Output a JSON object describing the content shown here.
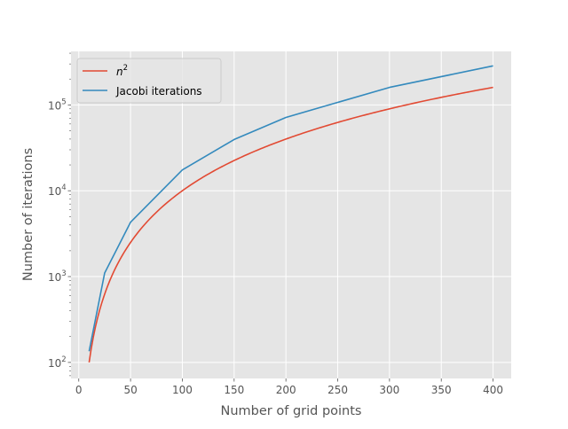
{
  "chart_data": {
    "type": "line",
    "title": "",
    "xlabel": "Number of grid points",
    "ylabel": "Number of iterations",
    "xlim": [
      -7.5,
      417.5
    ],
    "ylim": [
      65,
      420000
    ],
    "yscale": "log",
    "grid": true,
    "legend_placement": "upper left",
    "background": "#E5E5E5",
    "x_ticks": [
      0,
      50,
      100,
      150,
      200,
      250,
      300,
      350,
      400
    ],
    "x_tick_labels": [
      "0",
      "50",
      "100",
      "150",
      "200",
      "250",
      "300",
      "350",
      "400"
    ],
    "y_ticks": [
      100,
      1000,
      10000,
      100000
    ],
    "y_tick_labels": [
      {
        "base": "10",
        "exp": "2"
      },
      {
        "base": "10",
        "exp": "3"
      },
      {
        "base": "10",
        "exp": "4"
      },
      {
        "base": "10",
        "exp": "5"
      }
    ],
    "series": [
      {
        "name": "n^2",
        "legend_label": {
          "base": "n",
          "exp": "2"
        },
        "color": "#E24A33",
        "function": "n^2",
        "x_range": [
          10,
          400
        ]
      },
      {
        "name": "Jacobi iterations",
        "legend_label": {
          "base": "Jacobi iterations",
          "exp": ""
        },
        "color": "#348ABD",
        "x": [
          10,
          25,
          50,
          100,
          150,
          200,
          300,
          400
        ],
        "y": [
          135,
          1100,
          4300,
          17500,
          39500,
          71500,
          160000,
          285000
        ]
      }
    ]
  }
}
